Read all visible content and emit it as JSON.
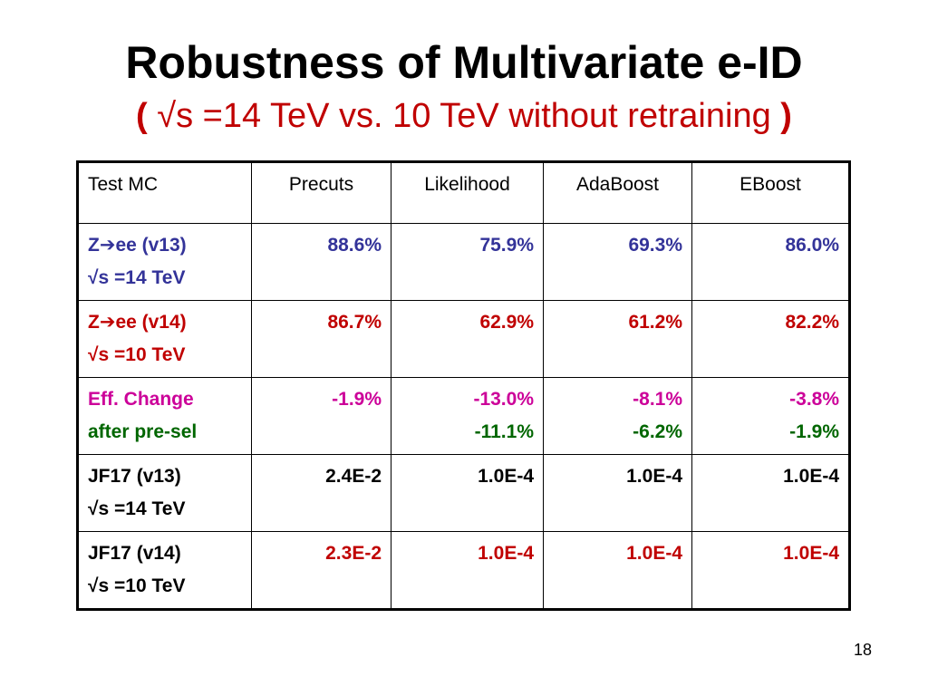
{
  "slide": {
    "title": "Robustness of Multivariate e-ID",
    "subtitle_open": "(",
    "subtitle_text": " √s =14 TeV vs. 10 TeV without retraining ",
    "subtitle_close": ")",
    "page_number": "18"
  },
  "table": {
    "headers": [
      "Test MC",
      "Precuts",
      "Likelihood",
      "AdaBoost",
      "EBoost"
    ],
    "rows": [
      {
        "label_line1_pre": "Z",
        "label_line1_arrow": "➔",
        "label_line1_post": "ee (v13)",
        "label_line2": "√s =14 TeV",
        "values": [
          "88.6%",
          "75.9%",
          "69.3%",
          "86.0%"
        ],
        "color": "#333399"
      },
      {
        "label_line1_pre": "Z",
        "label_line1_arrow": "➔",
        "label_line1_post": "ee (v14)",
        "label_line2": "√s =10 TeV",
        "values": [
          "86.7%",
          "62.9%",
          "61.2%",
          "82.2%"
        ],
        "color": "#c00000"
      },
      {
        "label_line1": "Eff. Change",
        "label_line2": "after pre-sel",
        "values_line1": [
          "-1.9%",
          "-13.0%",
          "-8.1%",
          "-3.8%"
        ],
        "values_line2": [
          "",
          "-11.1%",
          "-6.2%",
          "-1.9%"
        ],
        "color_line1": "#cc0099",
        "color_line2": "#006600"
      },
      {
        "label_line1": "JF17 (v13)",
        "label_line2": "√s =14 TeV",
        "values": [
          "2.4E-2",
          "1.0E-4",
          "1.0E-4",
          "1.0E-4"
        ],
        "color": "#000000"
      },
      {
        "label_line1": "JF17 (v14)",
        "label_line2": "√s =10 TeV",
        "values": [
          "2.3E-2",
          "1.0E-4",
          "1.0E-4",
          "1.0E-4"
        ],
        "label_color": "#000000",
        "value_color": "#c00000"
      }
    ]
  }
}
